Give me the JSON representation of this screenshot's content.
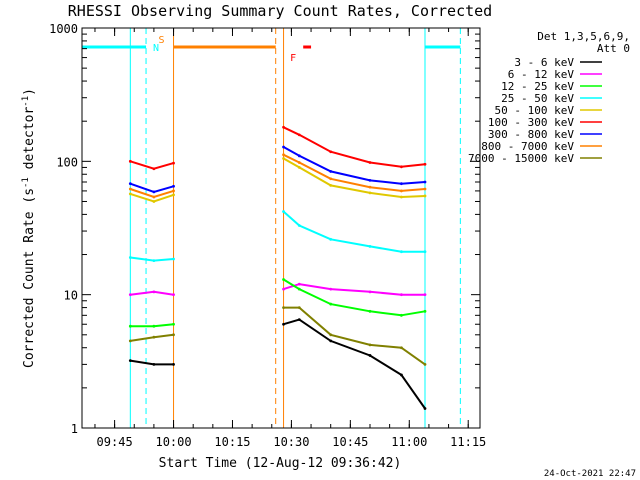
{
  "chart_data": {
    "type": "line",
    "title": "RHESSI Observing Summary Count Rates, Corrected",
    "xlabel": "Start Time (12-Aug-12 09:36:42)",
    "ylabel": "Corrected Count Rate (s⁻¹ detector⁻¹)",
    "ylabel_main": "Corrected Count Rate (s",
    "ylabel_sup1": "-1",
    "ylabel_mid": " detector",
    "ylabel_sup2": "-1",
    "ylabel_end": ")",
    "yscale": "log",
    "ylim": [
      1,
      1000
    ],
    "yticks": [
      1,
      10,
      100,
      1000
    ],
    "xlim": [
      "09:36:42",
      "11:18:00"
    ],
    "xticks": [
      "09:45",
      "10:00",
      "10:15",
      "10:30",
      "10:45",
      "11:00",
      "11:15"
    ],
    "legend_title": "Det 1,3,5,6,9,",
    "legend_subtitle": "Att 0",
    "legend_placement": "top-right",
    "series": [
      {
        "name": "3 - 6 keV",
        "color": "#000000",
        "points": [
          [
            "09:49",
            3.2
          ],
          [
            "09:55",
            3.0
          ],
          [
            "10:00",
            3.0
          ],
          [
            "10:28",
            6.0
          ],
          [
            "10:32",
            6.5
          ],
          [
            "10:40",
            4.5
          ],
          [
            "10:50",
            3.5
          ],
          [
            "10:58",
            2.5
          ],
          [
            "11:04",
            1.4
          ]
        ]
      },
      {
        "name": "6 - 12 keV",
        "color": "#ff00ff",
        "points": [
          [
            "09:49",
            10.0
          ],
          [
            "09:55",
            10.5
          ],
          [
            "10:00",
            10.0
          ],
          [
            "10:28",
            11.0
          ],
          [
            "10:32",
            12.0
          ],
          [
            "10:40",
            11.0
          ],
          [
            "10:50",
            10.5
          ],
          [
            "10:58",
            10.0
          ],
          [
            "11:04",
            10.0
          ]
        ]
      },
      {
        "name": "12 - 25 keV",
        "color": "#00ff00",
        "points": [
          [
            "09:49",
            5.8
          ],
          [
            "09:55",
            5.8
          ],
          [
            "10:00",
            6.0
          ],
          [
            "10:28",
            13.0
          ],
          [
            "10:32",
            11.0
          ],
          [
            "10:40",
            8.5
          ],
          [
            "10:50",
            7.5
          ],
          [
            "10:58",
            7.0
          ],
          [
            "11:04",
            7.5
          ]
        ]
      },
      {
        "name": "25 - 50 keV",
        "color": "#00ffff",
        "points": [
          [
            "09:49",
            19.0
          ],
          [
            "09:55",
            18.0
          ],
          [
            "10:00",
            18.5
          ],
          [
            "10:28",
            42.0
          ],
          [
            "10:32",
            33.0
          ],
          [
            "10:40",
            26.0
          ],
          [
            "10:50",
            23.0
          ],
          [
            "10:58",
            21.0
          ],
          [
            "11:04",
            21.0
          ]
        ]
      },
      {
        "name": "50 - 100 keV",
        "color": "#e0c800",
        "points": [
          [
            "09:49",
            57.0
          ],
          [
            "09:55",
            50.0
          ],
          [
            "10:00",
            56.0
          ],
          [
            "10:28",
            105.0
          ],
          [
            "10:32",
            90.0
          ],
          [
            "10:40",
            66.0
          ],
          [
            "10:50",
            58.0
          ],
          [
            "10:58",
            54.0
          ],
          [
            "11:04",
            55.0
          ]
        ]
      },
      {
        "name": "100 - 300 keV",
        "color": "#ff0000",
        "points": [
          [
            "09:49",
            100.0
          ],
          [
            "09:55",
            88.0
          ],
          [
            "10:00",
            97.0
          ],
          [
            "10:28",
            180.0
          ],
          [
            "10:32",
            158.0
          ],
          [
            "10:40",
            118.0
          ],
          [
            "10:50",
            98.0
          ],
          [
            "10:58",
            91.0
          ],
          [
            "11:04",
            95.0
          ]
        ]
      },
      {
        "name": "300 - 800 keV",
        "color": "#0000ff",
        "points": [
          [
            "09:49",
            68.0
          ],
          [
            "09:55",
            59.0
          ],
          [
            "10:00",
            65.0
          ],
          [
            "10:28",
            128.0
          ],
          [
            "10:32",
            110.0
          ],
          [
            "10:40",
            84.0
          ],
          [
            "10:50",
            72.0
          ],
          [
            "10:58",
            68.0
          ],
          [
            "11:04",
            70.0
          ]
        ]
      },
      {
        "name": "800 - 7000 keV",
        "color": "#ff8000",
        "points": [
          [
            "09:49",
            62.0
          ],
          [
            "09:55",
            54.0
          ],
          [
            "10:00",
            60.0
          ],
          [
            "10:28",
            112.0
          ],
          [
            "10:32",
            98.0
          ],
          [
            "10:40",
            74.0
          ],
          [
            "10:50",
            64.0
          ],
          [
            "10:58",
            60.0
          ],
          [
            "11:04",
            62.0
          ]
        ]
      },
      {
        "name": "7000 - 15000 keV",
        "color": "#808000",
        "points": [
          [
            "09:49",
            4.5
          ],
          [
            "09:55",
            4.8
          ],
          [
            "10:00",
            5.0
          ],
          [
            "10:28",
            8.0
          ],
          [
            "10:32",
            8.0
          ],
          [
            "10:40",
            5.0
          ],
          [
            "10:50",
            4.2
          ],
          [
            "10:58",
            4.0
          ],
          [
            "11:04",
            3.0
          ]
        ]
      }
    ],
    "annotations": [
      {
        "label": "N",
        "color": "#00ffff",
        "bars": [
          [
            "09:36:42",
            "09:53"
          ],
          [
            "11:04",
            "11:13"
          ]
        ],
        "vlines": [
          "09:53",
          "11:13"
        ]
      },
      {
        "label": "S",
        "color": "#ff8000",
        "bars": [
          [
            "10:00",
            "10:26"
          ]
        ],
        "vlines": [
          "10:26"
        ]
      },
      {
        "label": "F",
        "color": "#ff0000",
        "bars": [
          [
            "10:33",
            "10:35"
          ]
        ],
        "vlines": []
      }
    ],
    "grid": false,
    "footer": "24-Oct-2021 22:47"
  }
}
